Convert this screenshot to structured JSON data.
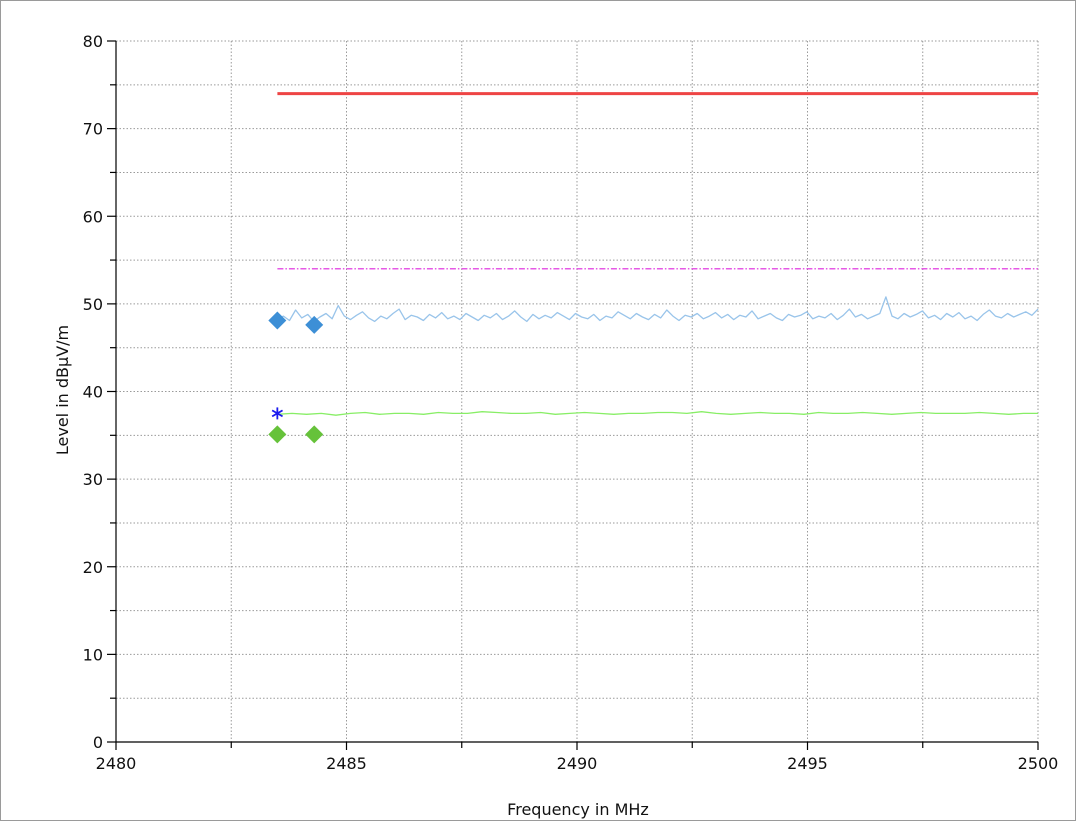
{
  "chart_data": {
    "type": "line",
    "xlabel": "Frequency in MHz",
    "ylabel": "Level in dBµV/m",
    "xlim": [
      2480,
      2500
    ],
    "ylim": [
      0,
      80
    ],
    "x_ticks": [
      2480,
      2485,
      2490,
      2495,
      2500
    ],
    "x_tick_labels": [
      "2480",
      "2485",
      "2490",
      "2495",
      "2500"
    ],
    "y_ticks": [
      0,
      10,
      20,
      30,
      40,
      50,
      60,
      70,
      80
    ],
    "y_tick_labels": [
      "0",
      "10",
      "20",
      "30",
      "40",
      "50",
      "60",
      "70",
      "80"
    ],
    "grid": true,
    "colors": {
      "limit_peak": "#ee4444",
      "limit_avg": "#dd22dd",
      "peak_trace": "#99c4ea",
      "avg_trace": "#88ee66",
      "peak_marker": "#3d8fd6",
      "avg_marker": "#66c23a",
      "star_marker": "#1a1aee"
    },
    "series": [
      {
        "key": "limit_peak",
        "style": "solid-thick",
        "x": [
          2483.5,
          2500
        ],
        "y": [
          74,
          74
        ]
      },
      {
        "key": "limit_avg",
        "style": "dashdot",
        "x": [
          2483.5,
          2500
        ],
        "y": [
          54,
          54
        ]
      },
      {
        "key": "peak_trace",
        "style": "noisy",
        "x_start": 2483.5,
        "x_end": 2500,
        "y": [
          48.2,
          48.6,
          48.1,
          49.3,
          48.4,
          48.8,
          48.0,
          48.5,
          48.9,
          48.3,
          49.8,
          48.6,
          48.2,
          48.7,
          49.1,
          48.4,
          48.0,
          48.6,
          48.3,
          48.9,
          49.4,
          48.2,
          48.7,
          48.5,
          48.1,
          48.8,
          48.4,
          49.0,
          48.3,
          48.6,
          48.2,
          48.9,
          48.5,
          48.1,
          48.7,
          48.4,
          48.9,
          48.2,
          48.6,
          49.2,
          48.5,
          48.0,
          48.8,
          48.3,
          48.7,
          48.4,
          49.0,
          48.6,
          48.2,
          48.9,
          48.5,
          48.3,
          48.8,
          48.1,
          48.6,
          48.4,
          49.1,
          48.7,
          48.3,
          48.9,
          48.5,
          48.2,
          48.8,
          48.4,
          49.3,
          48.6,
          48.1,
          48.7,
          48.5,
          48.9,
          48.3,
          48.6,
          49.0,
          48.4,
          48.8,
          48.2,
          48.7,
          48.5,
          49.2,
          48.3,
          48.6,
          48.9,
          48.4,
          48.1,
          48.8,
          48.5,
          48.7,
          49.1,
          48.3,
          48.6,
          48.4,
          48.9,
          48.2,
          48.7,
          49.4,
          48.5,
          48.8,
          48.3,
          48.6,
          48.9,
          50.8,
          48.6,
          48.3,
          48.9,
          48.5,
          48.8,
          49.2,
          48.4,
          48.7,
          48.2,
          48.9,
          48.5,
          49.0,
          48.3,
          48.6,
          48.1,
          48.8,
          49.3,
          48.6,
          48.4,
          48.9,
          48.5,
          48.8,
          49.1,
          48.7,
          49.4
        ]
      },
      {
        "key": "avg_trace",
        "style": "flat",
        "x_start": 2483.5,
        "x_end": 2500,
        "y": [
          37.4,
          37.5,
          37.4,
          37.5,
          37.3,
          37.5,
          37.6,
          37.4,
          37.5,
          37.5,
          37.4,
          37.6,
          37.5,
          37.5,
          37.7,
          37.6,
          37.5,
          37.5,
          37.6,
          37.4,
          37.5,
          37.6,
          37.5,
          37.4,
          37.5,
          37.5,
          37.6,
          37.6,
          37.5,
          37.7,
          37.5,
          37.4,
          37.5,
          37.6,
          37.5,
          37.5,
          37.4,
          37.6,
          37.5,
          37.5,
          37.6,
          37.5,
          37.4,
          37.5,
          37.6,
          37.5,
          37.5,
          37.5,
          37.6,
          37.5,
          37.4,
          37.5,
          37.5
        ]
      }
    ],
    "markers": [
      {
        "key": "peak_marker",
        "shape": "diamond",
        "x": 2483.5,
        "y": 48.1
      },
      {
        "key": "peak_marker",
        "shape": "diamond",
        "x": 2484.3,
        "y": 47.6
      },
      {
        "key": "avg_marker",
        "shape": "diamond",
        "x": 2483.5,
        "y": 35.1
      },
      {
        "key": "avg_marker",
        "shape": "diamond",
        "x": 2484.3,
        "y": 35.1
      },
      {
        "key": "star_marker",
        "shape": "star",
        "x": 2483.5,
        "y": 37.5
      }
    ]
  }
}
